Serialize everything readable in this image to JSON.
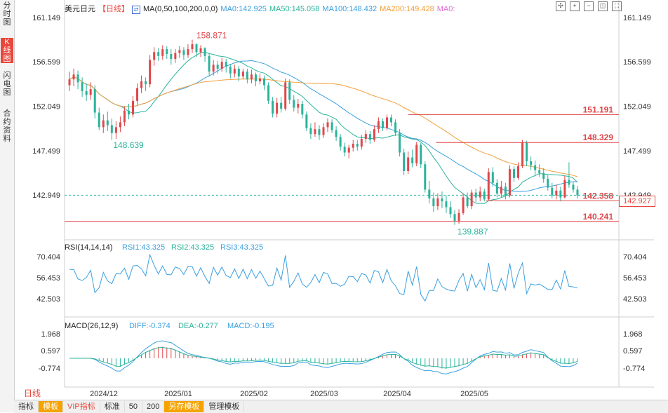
{
  "sidebar": {
    "tabs": [
      {
        "label": "分时图",
        "active": false
      },
      {
        "label": "K线图",
        "active": true
      },
      {
        "label": "闪电图",
        "active": false
      },
      {
        "label": "合约资料",
        "active": false
      }
    ]
  },
  "header": {
    "symbol": "美元日元",
    "period_tag": "【日线】",
    "ma_params": "MA(0,50,100,200,0,0)",
    "ma_items": [
      {
        "label": "MA0:142.925",
        "color": "#3aa0e0"
      },
      {
        "label": "MA50:145.058",
        "color": "#2bb39a"
      },
      {
        "label": "MA100:148.432",
        "color": "#3aa0e0"
      },
      {
        "label": "MA200:149.428",
        "color": "#f2a03c"
      },
      {
        "label": "MA0:",
        "color": "#e070d0"
      }
    ]
  },
  "price_panel": {
    "y_ticks": [
      "161.149",
      "156.599",
      "152.049",
      "147.499",
      "142.949"
    ],
    "annotations": {
      "high": "158.871",
      "low": "139.887",
      "left_low": "148.639",
      "level_1": "151.191",
      "level_2": "148.329",
      "level_3": "142.358",
      "level_4": "140.241",
      "current_price": "142.927"
    }
  },
  "rsi_panel": {
    "title": "RSI(14,14,14)",
    "items": [
      {
        "label": "RSI1:43.325",
        "color": "#3aa0e0"
      },
      {
        "label": "RSI2:43.325",
        "color": "#2bb39a"
      },
      {
        "label": "RSI3:43.325",
        "color": "#3aa0e0"
      }
    ],
    "y_ticks": [
      "70.404",
      "56.453",
      "42.503"
    ]
  },
  "macd_panel": {
    "title": "MACD(26,12,9)",
    "items": [
      {
        "label": "DIFF:-0.374",
        "color": "#3aa0e0"
      },
      {
        "label": "DEA:-0.277",
        "color": "#2bb39a"
      },
      {
        "label": "MACD:-0.195",
        "color": "#3aa0e0"
      }
    ],
    "y_ticks": [
      "1.968",
      "0.597",
      "-0.774"
    ]
  },
  "x_axis": {
    "labels": [
      "2024/12",
      "2025/01",
      "2025/02",
      "2025/03",
      "2025/04",
      "2025/05"
    ]
  },
  "bottom_bar": {
    "period_label": "日线",
    "buttons": [
      "指标",
      "模板",
      "VIP指标",
      "标准",
      "50",
      "200",
      "另存模板",
      "管理模板"
    ]
  },
  "colors": {
    "up": "#e0474a",
    "down": "#2bb39a",
    "ma50": "#2bb39a",
    "ma100": "#3aa0e0",
    "ma200": "#f2a03c",
    "level_line": "#e0474a"
  },
  "chart_data": {
    "type": "candlestick",
    "title": "美元日元【日线】",
    "x": [
      "2024/12",
      "2025/01",
      "2025/02",
      "2025/03",
      "2025/04",
      "2025/05"
    ],
    "ylim": [
      138.5,
      161.5
    ],
    "key_levels": [
      151.191,
      148.329,
      142.358,
      140.241
    ],
    "extremes": {
      "high": 158.871,
      "low": 139.887,
      "left_low": 148.639
    },
    "candles": [
      {
        "o": 154.2,
        "c": 154.8,
        "h": 155.6,
        "l": 153.6
      },
      {
        "o": 154.8,
        "c": 155.3,
        "h": 155.9,
        "l": 154.1
      },
      {
        "o": 155.3,
        "c": 154.5,
        "h": 155.7,
        "l": 153.8
      },
      {
        "o": 154.5,
        "c": 153.6,
        "h": 155.0,
        "l": 153.0
      },
      {
        "o": 153.6,
        "c": 153.2,
        "h": 154.4,
        "l": 152.6
      },
      {
        "o": 153.2,
        "c": 153.8,
        "h": 154.5,
        "l": 152.7
      },
      {
        "o": 153.8,
        "c": 151.4,
        "h": 154.2,
        "l": 150.8
      },
      {
        "o": 151.4,
        "c": 149.9,
        "h": 151.9,
        "l": 149.6
      },
      {
        "o": 149.9,
        "c": 150.6,
        "h": 151.2,
        "l": 149.3
      },
      {
        "o": 150.6,
        "c": 150.1,
        "h": 151.5,
        "l": 149.5
      },
      {
        "o": 150.1,
        "c": 149.3,
        "h": 150.8,
        "l": 148.6
      },
      {
        "o": 149.3,
        "c": 149.9,
        "h": 150.5,
        "l": 148.7
      },
      {
        "o": 149.9,
        "c": 150.4,
        "h": 151.0,
        "l": 149.4
      },
      {
        "o": 150.4,
        "c": 151.6,
        "h": 152.0,
        "l": 150.0
      },
      {
        "o": 151.6,
        "c": 151.2,
        "h": 152.3,
        "l": 150.7
      },
      {
        "o": 151.2,
        "c": 152.6,
        "h": 153.1,
        "l": 150.9
      },
      {
        "o": 152.6,
        "c": 153.9,
        "h": 154.4,
        "l": 152.2
      },
      {
        "o": 153.9,
        "c": 154.6,
        "h": 155.2,
        "l": 153.4
      },
      {
        "o": 154.6,
        "c": 154.3,
        "h": 155.0,
        "l": 153.6
      },
      {
        "o": 154.3,
        "c": 156.8,
        "h": 157.3,
        "l": 154.0
      },
      {
        "o": 156.8,
        "c": 157.6,
        "h": 158.1,
        "l": 156.2
      },
      {
        "o": 157.6,
        "c": 157.2,
        "h": 158.0,
        "l": 156.7
      },
      {
        "o": 157.2,
        "c": 157.9,
        "h": 158.3,
        "l": 156.8
      },
      {
        "o": 157.9,
        "c": 157.4,
        "h": 158.2,
        "l": 156.9
      },
      {
        "o": 157.4,
        "c": 156.9,
        "h": 157.9,
        "l": 156.3
      },
      {
        "o": 156.9,
        "c": 157.5,
        "h": 157.9,
        "l": 156.5
      },
      {
        "o": 157.5,
        "c": 157.8,
        "h": 158.2,
        "l": 157.0
      },
      {
        "o": 157.8,
        "c": 157.3,
        "h": 158.1,
        "l": 156.8
      },
      {
        "o": 157.3,
        "c": 157.9,
        "h": 158.4,
        "l": 157.0
      },
      {
        "o": 157.9,
        "c": 158.4,
        "h": 158.871,
        "l": 157.5
      },
      {
        "o": 158.4,
        "c": 157.6,
        "h": 158.5,
        "l": 157.1
      },
      {
        "o": 157.6,
        "c": 158.0,
        "h": 158.3,
        "l": 157.1
      },
      {
        "o": 158.0,
        "c": 157.2,
        "h": 158.1,
        "l": 156.6
      },
      {
        "o": 157.2,
        "c": 155.6,
        "h": 157.4,
        "l": 155.1
      },
      {
        "o": 155.6,
        "c": 156.3,
        "h": 156.8,
        "l": 155.2
      },
      {
        "o": 156.3,
        "c": 155.9,
        "h": 156.7,
        "l": 155.4
      },
      {
        "o": 155.9,
        "c": 156.6,
        "h": 157.0,
        "l": 155.6
      },
      {
        "o": 156.6,
        "c": 156.1,
        "h": 156.9,
        "l": 155.5
      },
      {
        "o": 156.1,
        "c": 155.4,
        "h": 156.4,
        "l": 154.9
      },
      {
        "o": 155.4,
        "c": 155.9,
        "h": 156.3,
        "l": 155.0
      },
      {
        "o": 155.9,
        "c": 155.1,
        "h": 156.2,
        "l": 154.6
      },
      {
        "o": 155.1,
        "c": 155.6,
        "h": 155.9,
        "l": 154.8
      },
      {
        "o": 155.6,
        "c": 154.8,
        "h": 155.9,
        "l": 154.4
      },
      {
        "o": 154.8,
        "c": 155.3,
        "h": 155.8,
        "l": 154.4
      },
      {
        "o": 155.3,
        "c": 154.6,
        "h": 155.5,
        "l": 154.1
      },
      {
        "o": 154.6,
        "c": 154.9,
        "h": 155.4,
        "l": 154.3
      },
      {
        "o": 154.9,
        "c": 154.2,
        "h": 155.2,
        "l": 153.7
      },
      {
        "o": 154.2,
        "c": 152.6,
        "h": 154.5,
        "l": 152.3
      },
      {
        "o": 152.6,
        "c": 151.3,
        "h": 153.0,
        "l": 150.9
      },
      {
        "o": 151.3,
        "c": 152.4,
        "h": 152.9,
        "l": 150.9
      },
      {
        "o": 152.4,
        "c": 151.8,
        "h": 153.0,
        "l": 151.4
      },
      {
        "o": 151.8,
        "c": 154.5,
        "h": 154.9,
        "l": 151.6
      },
      {
        "o": 154.5,
        "c": 152.7,
        "h": 154.8,
        "l": 152.3
      },
      {
        "o": 152.7,
        "c": 151.9,
        "h": 153.2,
        "l": 151.5
      },
      {
        "o": 151.9,
        "c": 152.3,
        "h": 152.8,
        "l": 151.3
      },
      {
        "o": 152.3,
        "c": 151.2,
        "h": 152.6,
        "l": 150.8
      },
      {
        "o": 151.2,
        "c": 149.8,
        "h": 151.5,
        "l": 149.5
      },
      {
        "o": 149.8,
        "c": 149.2,
        "h": 150.3,
        "l": 148.7
      },
      {
        "o": 149.2,
        "c": 149.7,
        "h": 150.4,
        "l": 148.9
      },
      {
        "o": 149.7,
        "c": 149.1,
        "h": 150.1,
        "l": 148.6
      },
      {
        "o": 149.1,
        "c": 149.9,
        "h": 150.3,
        "l": 148.8
      },
      {
        "o": 149.9,
        "c": 150.4,
        "h": 150.8,
        "l": 149.4
      },
      {
        "o": 150.4,
        "c": 149.6,
        "h": 150.7,
        "l": 149.3
      },
      {
        "o": 149.6,
        "c": 148.9,
        "h": 150.0,
        "l": 148.5
      },
      {
        "o": 148.9,
        "c": 147.9,
        "h": 149.2,
        "l": 147.5
      },
      {
        "o": 147.9,
        "c": 147.3,
        "h": 148.3,
        "l": 146.9
      },
      {
        "o": 147.3,
        "c": 147.8,
        "h": 148.1,
        "l": 146.7
      },
      {
        "o": 147.8,
        "c": 148.2,
        "h": 148.6,
        "l": 147.4
      },
      {
        "o": 148.2,
        "c": 147.9,
        "h": 148.6,
        "l": 147.5
      },
      {
        "o": 147.9,
        "c": 148.7,
        "h": 149.1,
        "l": 147.6
      },
      {
        "o": 148.7,
        "c": 149.2,
        "h": 149.6,
        "l": 148.3
      },
      {
        "o": 149.2,
        "c": 148.6,
        "h": 149.5,
        "l": 148.2
      },
      {
        "o": 148.6,
        "c": 149.7,
        "h": 150.1,
        "l": 148.4
      },
      {
        "o": 149.7,
        "c": 150.5,
        "h": 150.9,
        "l": 149.3
      },
      {
        "o": 150.5,
        "c": 149.8,
        "h": 150.8,
        "l": 149.5
      },
      {
        "o": 149.8,
        "c": 150.9,
        "h": 151.2,
        "l": 149.6
      },
      {
        "o": 150.9,
        "c": 150.4,
        "h": 151.2,
        "l": 150.0
      },
      {
        "o": 150.4,
        "c": 149.3,
        "h": 150.7,
        "l": 149.0
      },
      {
        "o": 149.3,
        "c": 147.3,
        "h": 149.7,
        "l": 146.9
      },
      {
        "o": 147.3,
        "c": 145.4,
        "h": 147.7,
        "l": 145.0
      },
      {
        "o": 145.4,
        "c": 146.8,
        "h": 147.4,
        "l": 145.1
      },
      {
        "o": 146.8,
        "c": 146.2,
        "h": 147.6,
        "l": 145.8
      },
      {
        "o": 146.2,
        "c": 148.1,
        "h": 148.4,
        "l": 145.9
      },
      {
        "o": 148.1,
        "c": 146.1,
        "h": 148.3,
        "l": 145.7
      },
      {
        "o": 146.1,
        "c": 143.5,
        "h": 146.4,
        "l": 143.2
      },
      {
        "o": 143.5,
        "c": 142.6,
        "h": 144.4,
        "l": 142.1
      },
      {
        "o": 142.6,
        "c": 141.8,
        "h": 143.2,
        "l": 141.2
      },
      {
        "o": 141.8,
        "c": 142.6,
        "h": 143.1,
        "l": 141.4
      },
      {
        "o": 142.6,
        "c": 142.3,
        "h": 143.3,
        "l": 141.6
      },
      {
        "o": 142.3,
        "c": 141.7,
        "h": 142.9,
        "l": 141.1
      },
      {
        "o": 141.7,
        "c": 141.0,
        "h": 142.3,
        "l": 140.6
      },
      {
        "o": 141.0,
        "c": 140.3,
        "h": 141.4,
        "l": 139.887
      },
      {
        "o": 140.3,
        "c": 141.1,
        "h": 141.5,
        "l": 140.0
      },
      {
        "o": 141.1,
        "c": 142.7,
        "h": 143.1,
        "l": 140.9
      },
      {
        "o": 142.7,
        "c": 141.8,
        "h": 143.2,
        "l": 141.6
      },
      {
        "o": 141.8,
        "c": 143.2,
        "h": 143.5,
        "l": 141.5
      },
      {
        "o": 143.2,
        "c": 142.7,
        "h": 143.6,
        "l": 142.2
      },
      {
        "o": 142.7,
        "c": 143.3,
        "h": 143.8,
        "l": 142.3
      },
      {
        "o": 143.3,
        "c": 142.5,
        "h": 143.6,
        "l": 142.3
      },
      {
        "o": 142.5,
        "c": 145.3,
        "h": 145.7,
        "l": 142.4
      },
      {
        "o": 145.3,
        "c": 144.2,
        "h": 145.8,
        "l": 143.8
      },
      {
        "o": 144.2,
        "c": 143.1,
        "h": 144.6,
        "l": 142.7
      },
      {
        "o": 143.1,
        "c": 143.8,
        "h": 144.4,
        "l": 142.7
      },
      {
        "o": 143.8,
        "c": 142.9,
        "h": 144.2,
        "l": 142.5
      },
      {
        "o": 142.9,
        "c": 145.6,
        "h": 146.0,
        "l": 142.7
      },
      {
        "o": 145.6,
        "c": 144.7,
        "h": 145.9,
        "l": 144.3
      },
      {
        "o": 144.7,
        "c": 145.9,
        "h": 146.3,
        "l": 144.5
      },
      {
        "o": 145.9,
        "c": 148.3,
        "h": 148.6,
        "l": 145.7
      },
      {
        "o": 148.3,
        "c": 146.4,
        "h": 148.5,
        "l": 145.9
      },
      {
        "o": 146.4,
        "c": 146.0,
        "h": 146.9,
        "l": 145.5
      },
      {
        "o": 146.0,
        "c": 145.5,
        "h": 146.5,
        "l": 145.0
      },
      {
        "o": 145.5,
        "c": 145.2,
        "h": 146.1,
        "l": 144.8
      },
      {
        "o": 145.2,
        "c": 144.6,
        "h": 145.7,
        "l": 144.2
      },
      {
        "o": 144.6,
        "c": 143.7,
        "h": 145.0,
        "l": 143.4
      },
      {
        "o": 143.7,
        "c": 142.9,
        "h": 144.2,
        "l": 142.6
      },
      {
        "o": 142.9,
        "c": 143.4,
        "h": 144.0,
        "l": 142.5
      },
      {
        "o": 143.4,
        "c": 142.7,
        "h": 143.8,
        "l": 142.3
      },
      {
        "o": 142.7,
        "c": 144.5,
        "h": 144.9,
        "l": 142.6
      },
      {
        "o": 144.5,
        "c": 144.0,
        "h": 146.3,
        "l": 143.7
      },
      {
        "o": 144.0,
        "c": 143.5,
        "h": 144.3,
        "l": 143.2
      },
      {
        "o": 143.5,
        "c": 142.9,
        "h": 143.9,
        "l": 142.6
      }
    ]
  }
}
